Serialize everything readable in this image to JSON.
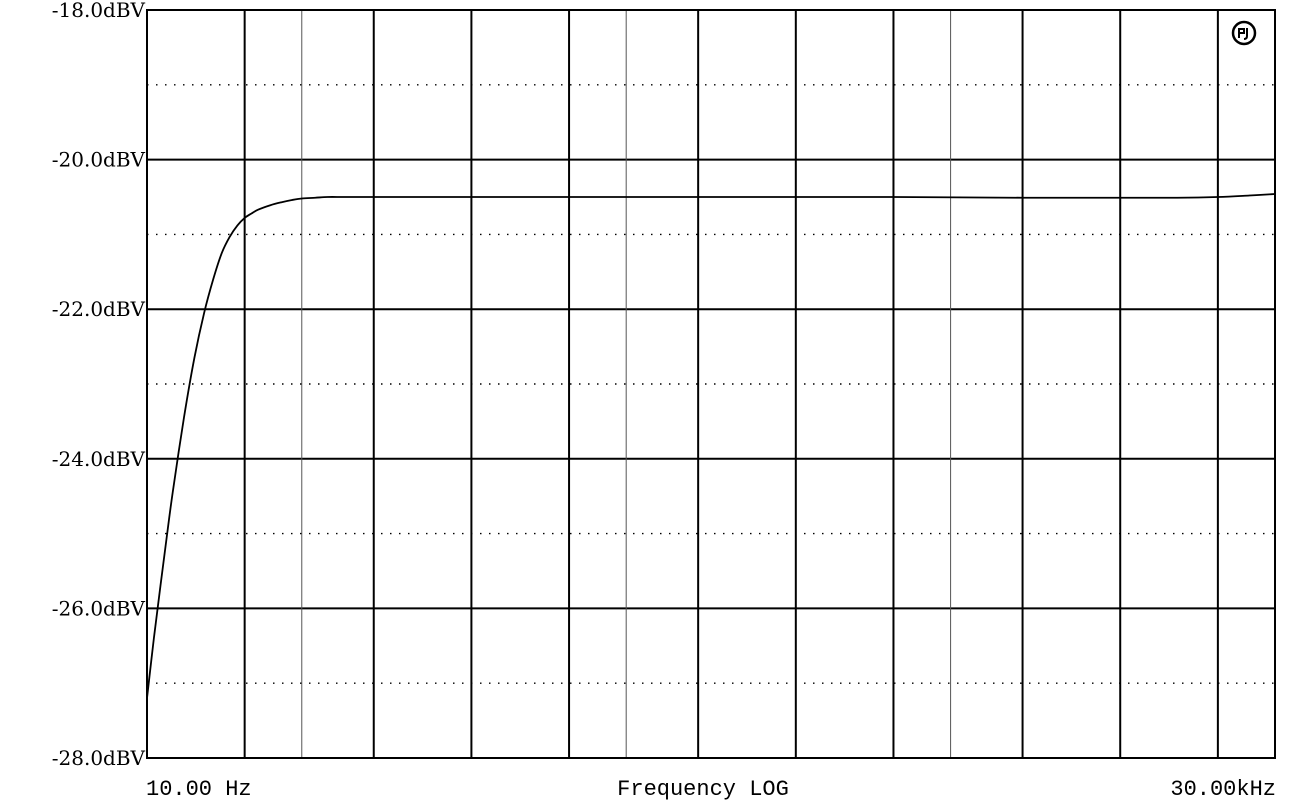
{
  "chart_data": {
    "type": "line",
    "title": "",
    "xlabel": "Frequency LOG",
    "ylabel": "",
    "x_scale": "log",
    "xlim": [
      10,
      30000
    ],
    "ylim": [
      -28,
      -18
    ],
    "x_tick_labels": {
      "start": "10.00 Hz",
      "end": "30.00kHz"
    },
    "y_ticks": [
      {
        "value": -18,
        "label": "-18.0dBV"
      },
      {
        "value": -20,
        "label": "-20.0dBV"
      },
      {
        "value": -22,
        "label": "-22.0dBV"
      },
      {
        "value": -24,
        "label": "-24.0dBV"
      },
      {
        "value": -26,
        "label": "-26.0dBV"
      },
      {
        "value": -28,
        "label": "-28.0dBV"
      }
    ],
    "x_major_grid": [
      20,
      50,
      100,
      200,
      500,
      1000,
      2000,
      5000,
      10000,
      20000
    ],
    "x_minor_grid": [
      30,
      300,
      3000
    ],
    "y_dotted_grid": [
      -19,
      -21,
      -23,
      -25,
      -27
    ],
    "grid": true,
    "logo": "ap-logo-icon",
    "series": [
      {
        "x": [
          10,
          10.5,
          11,
          11.5,
          12,
          13,
          14,
          15,
          16,
          17,
          18,
          19,
          20,
          21,
          22,
          24,
          26,
          28,
          30,
          33,
          36,
          40,
          45,
          50,
          60,
          80,
          100,
          200,
          500,
          1000,
          2000,
          5000,
          10000,
          15000,
          20000,
          25000,
          30000
        ],
        "y": [
          -27.2,
          -26.4,
          -25.7,
          -25.05,
          -24.45,
          -23.45,
          -22.65,
          -22.05,
          -21.6,
          -21.25,
          -21.03,
          -20.88,
          -20.78,
          -20.72,
          -20.67,
          -20.61,
          -20.57,
          -20.54,
          -20.52,
          -20.51,
          -20.5,
          -20.5,
          -20.5,
          -20.5,
          -20.5,
          -20.5,
          -20.5,
          -20.5,
          -20.5,
          -20.5,
          -20.5,
          -20.51,
          -20.51,
          -20.51,
          -20.5,
          -20.48,
          -20.46
        ]
      }
    ]
  }
}
